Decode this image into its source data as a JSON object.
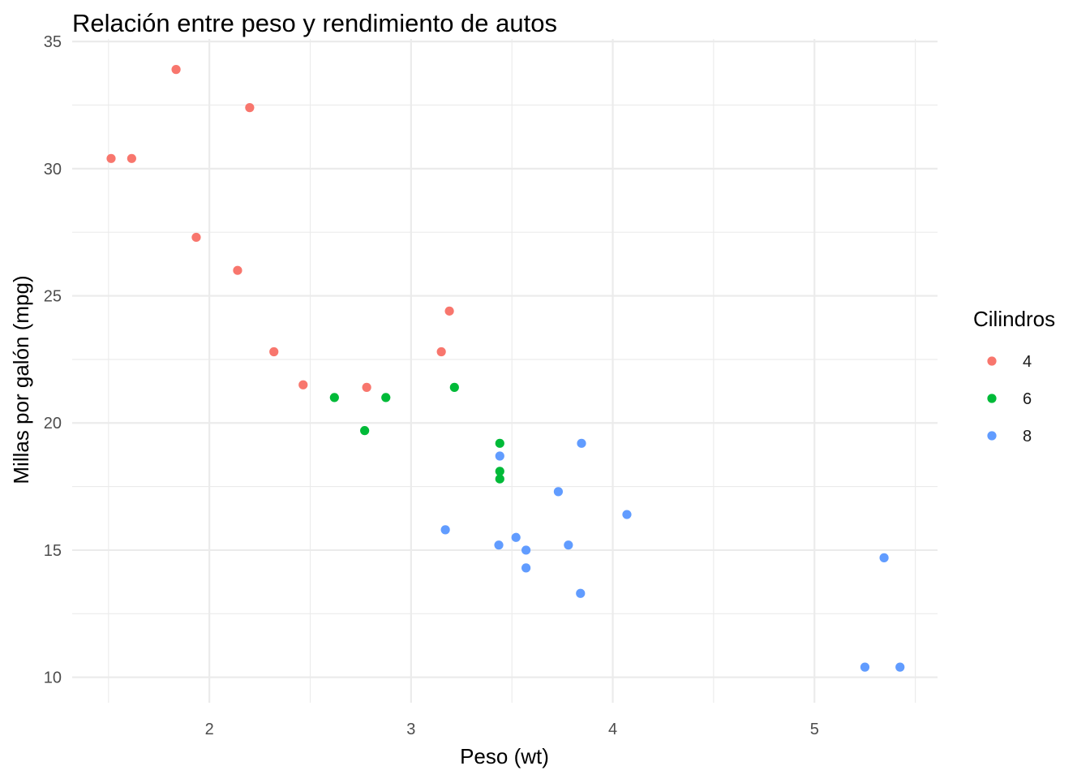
{
  "chart_data": {
    "type": "scatter",
    "title": "Relación entre peso y rendimiento de autos",
    "xlabel": "Peso (wt)",
    "ylabel": "Millas por galón (mpg)",
    "xlim": [
      1.32,
      5.61
    ],
    "ylim": [
      9.0,
      35.1
    ],
    "x_ticks": [
      2,
      3,
      4,
      5
    ],
    "y_ticks": [
      10,
      15,
      20,
      25,
      30,
      35
    ],
    "x_minor": [
      1.5,
      2.5,
      3.5,
      4.5,
      5.5
    ],
    "y_minor": [
      12.5,
      17.5,
      22.5,
      27.5,
      32.5
    ],
    "grid": true,
    "legend": {
      "title": "Cilindros",
      "position": "right"
    },
    "series": [
      {
        "name": "4",
        "color": "#F8766D",
        "points": [
          [
            2.32,
            22.8
          ],
          [
            3.19,
            24.4
          ],
          [
            3.15,
            22.8
          ],
          [
            2.2,
            32.4
          ],
          [
            1.615,
            30.4
          ],
          [
            1.835,
            33.9
          ],
          [
            2.465,
            21.5
          ],
          [
            1.935,
            27.3
          ],
          [
            2.14,
            26.0
          ],
          [
            1.513,
            30.4
          ],
          [
            2.78,
            21.4
          ]
        ]
      },
      {
        "name": "6",
        "color": "#00BA38",
        "points": [
          [
            2.62,
            21.0
          ],
          [
            2.875,
            21.0
          ],
          [
            3.215,
            21.4
          ],
          [
            3.44,
            18.1
          ],
          [
            3.44,
            19.2
          ],
          [
            3.44,
            17.8
          ],
          [
            2.77,
            19.7
          ]
        ]
      },
      {
        "name": "8",
        "color": "#619CFF",
        "points": [
          [
            3.44,
            18.7
          ],
          [
            3.57,
            14.3
          ],
          [
            4.07,
            16.4
          ],
          [
            3.73,
            17.3
          ],
          [
            3.78,
            15.2
          ],
          [
            5.25,
            10.4
          ],
          [
            5.424,
            10.4
          ],
          [
            5.345,
            14.7
          ],
          [
            3.52,
            15.5
          ],
          [
            3.435,
            15.2
          ],
          [
            3.84,
            13.3
          ],
          [
            3.845,
            19.2
          ],
          [
            3.17,
            15.8
          ],
          [
            3.57,
            15.0
          ]
        ]
      }
    ]
  }
}
